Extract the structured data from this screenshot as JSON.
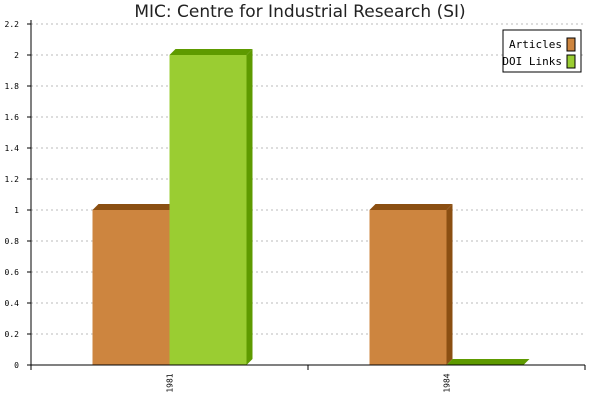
{
  "chart_data": {
    "type": "bar",
    "title": "MIC: Centre for Industrial Research (SI)",
    "xlabel": "",
    "ylabel": "",
    "categories": [
      "1981",
      "1984"
    ],
    "series": [
      {
        "name": "Articles",
        "values": [
          1,
          1
        ],
        "color": "#CD853F",
        "shade": "#8B4F12"
      },
      {
        "name": "DOI Links",
        "values": [
          2,
          0
        ],
        "color": "#9ACD32",
        "shade": "#5E9A00"
      }
    ],
    "ylim": [
      0,
      2.2
    ],
    "yticks": [
      "0",
      "0.2",
      "0.4",
      "0.6",
      "0.8",
      "1",
      "1.2",
      "1.4",
      "1.6",
      "1.8",
      "2",
      "2.2"
    ],
    "grid": true,
    "legend_position": "top-right"
  }
}
